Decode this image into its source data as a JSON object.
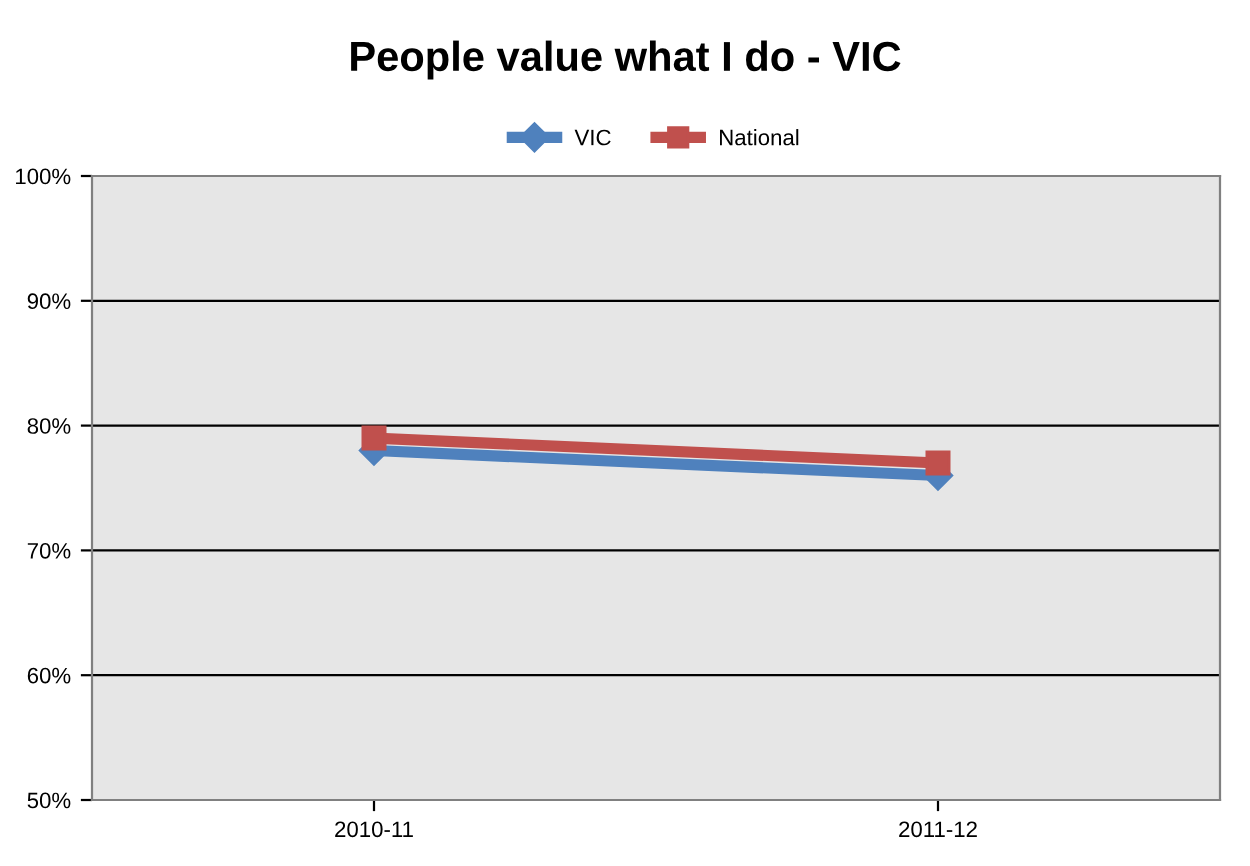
{
  "chart_data": {
    "type": "line",
    "title": "People value what I do - VIC",
    "categories": [
      "2010-11",
      "2011-12"
    ],
    "series": [
      {
        "name": "VIC",
        "color": "#4f81bd",
        "values": [
          78,
          76
        ],
        "marker": "diamond"
      },
      {
        "name": "National",
        "color": "#c0504d",
        "values": [
          79,
          77
        ],
        "marker": "square"
      }
    ],
    "ylim": [
      50,
      100
    ],
    "yticks": [
      {
        "value": 50,
        "label": "50%"
      },
      {
        "value": 60,
        "label": "60%"
      },
      {
        "value": 70,
        "label": "70%"
      },
      {
        "value": 80,
        "label": "80%"
      },
      {
        "value": 90,
        "label": "90%"
      },
      {
        "value": 100,
        "label": "100%"
      }
    ],
    "grid": "y",
    "legend": "top",
    "line_style": "solid"
  }
}
